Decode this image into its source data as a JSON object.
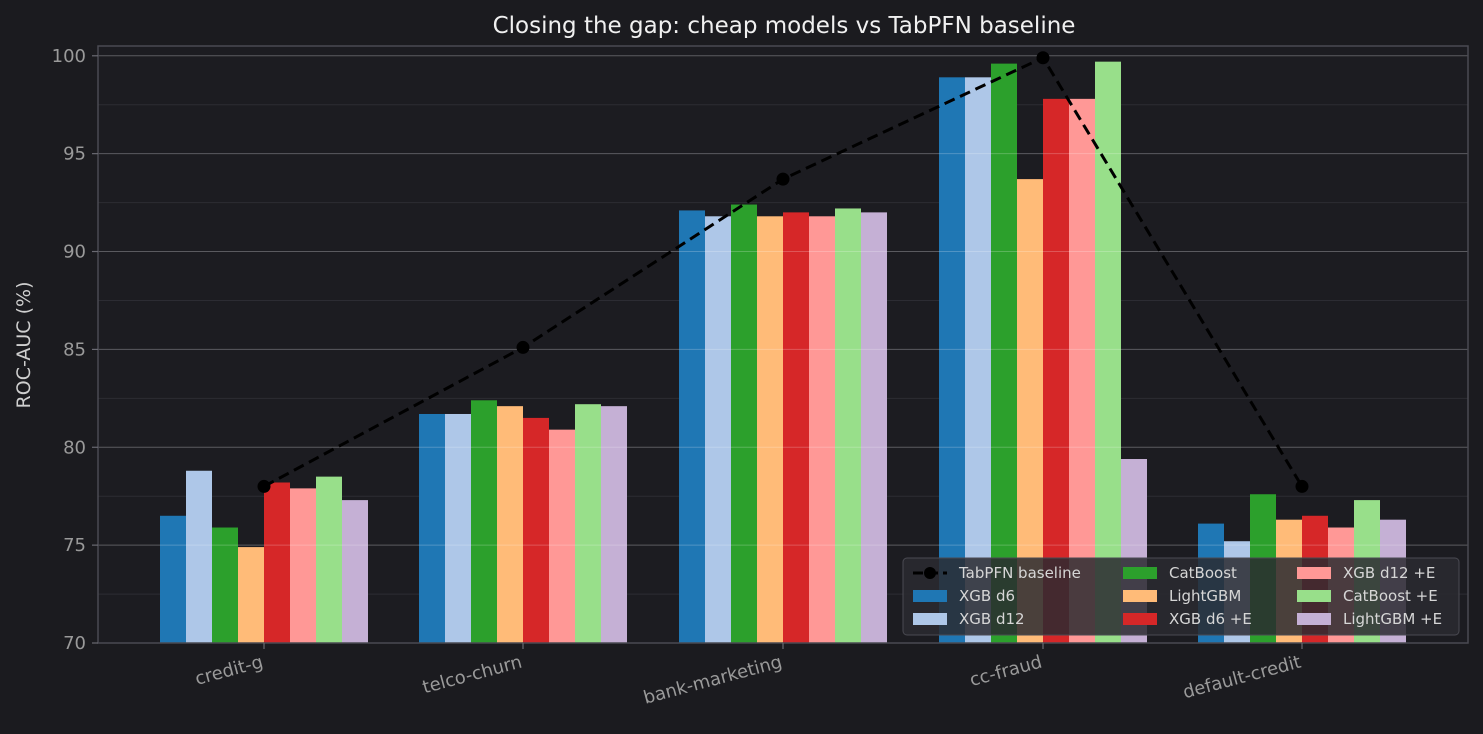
{
  "chart_data": {
    "type": "bar",
    "title": "Closing the gap: cheap models vs TabPFN baseline",
    "xlabel": "",
    "ylabel": "ROC-AUC (%)",
    "ylim": [
      70,
      100.5
    ],
    "yticks": [
      "70",
      "75",
      "80",
      "85",
      "90",
      "95",
      "100"
    ],
    "grid": true,
    "legend_position": "lower-right",
    "categories": [
      "credit-g",
      "telco-churn",
      "bank-marketing",
      "cc-fraud",
      "default-credit"
    ],
    "series": [
      {
        "name": "XGB d6",
        "color": "#1f77b4",
        "values": [
          76.5,
          81.7,
          92.1,
          98.9,
          76.1
        ]
      },
      {
        "name": "XGB d12",
        "color": "#aec7e8",
        "values": [
          78.8,
          81.7,
          91.8,
          98.9,
          75.2
        ]
      },
      {
        "name": "CatBoost",
        "color": "#2ca02c",
        "values": [
          75.9,
          82.4,
          92.4,
          99.6,
          77.6
        ]
      },
      {
        "name": "LightGBM",
        "color": "#ffbb78",
        "values": [
          74.9,
          82.1,
          91.8,
          93.7,
          76.3
        ]
      },
      {
        "name": "XGB d6 +E",
        "color": "#d62728",
        "values": [
          78.2,
          81.5,
          92.0,
          97.8,
          76.5
        ]
      },
      {
        "name": "XGB d12 +E",
        "color": "#ff9896",
        "values": [
          77.9,
          80.9,
          91.8,
          97.8,
          75.9
        ]
      },
      {
        "name": "CatBoost +E",
        "color": "#98df8a",
        "values": [
          78.5,
          82.2,
          92.2,
          99.7,
          77.3
        ]
      },
      {
        "name": "LightGBM +E",
        "color": "#c5b0d5",
        "values": [
          77.3,
          82.1,
          92.0,
          79.4,
          76.3
        ]
      }
    ],
    "baseline": {
      "name": "TabPFN baseline",
      "color": "#000000",
      "style": "dashed-with-circle-markers",
      "values": [
        78.0,
        85.1,
        93.7,
        99.9,
        78.0
      ]
    }
  }
}
